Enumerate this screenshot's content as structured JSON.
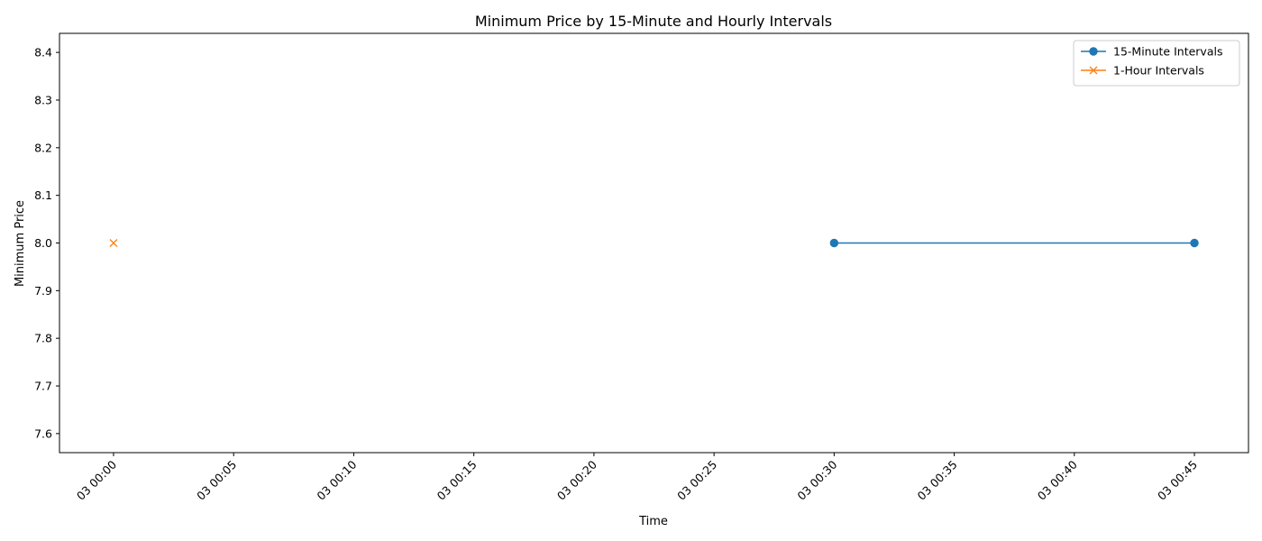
{
  "chart_data": {
    "type": "line",
    "title": "Minimum Price by 15-Minute and Hourly Intervals",
    "xlabel": "Time",
    "ylabel": "Minimum Price",
    "x_ticks": [
      "03 00:00",
      "03 00:05",
      "03 00:10",
      "03 00:15",
      "03 00:20",
      "03 00:25",
      "03 00:30",
      "03 00:35",
      "03 00:40",
      "03 00:45"
    ],
    "x_tick_minutes": [
      0,
      5,
      10,
      15,
      20,
      25,
      30,
      35,
      40,
      45
    ],
    "xlim_minutes": [
      -2.25,
      47.25
    ],
    "y_ticks": [
      "7.6",
      "7.7",
      "7.8",
      "7.9",
      "8.0",
      "8.1",
      "8.2",
      "8.3",
      "8.4"
    ],
    "ylim": [
      7.56,
      8.44
    ],
    "grid": false,
    "legend_position": "top-right",
    "series": [
      {
        "name": "15-Minute Intervals",
        "color": "#1f77b4",
        "marker": "circle",
        "x_minutes": [
          30,
          45
        ],
        "values": [
          8.0,
          8.0
        ]
      },
      {
        "name": "1-Hour Intervals",
        "color": "#ff7f0e",
        "marker": "x",
        "x_minutes": [
          0
        ],
        "values": [
          8.0
        ]
      }
    ]
  }
}
